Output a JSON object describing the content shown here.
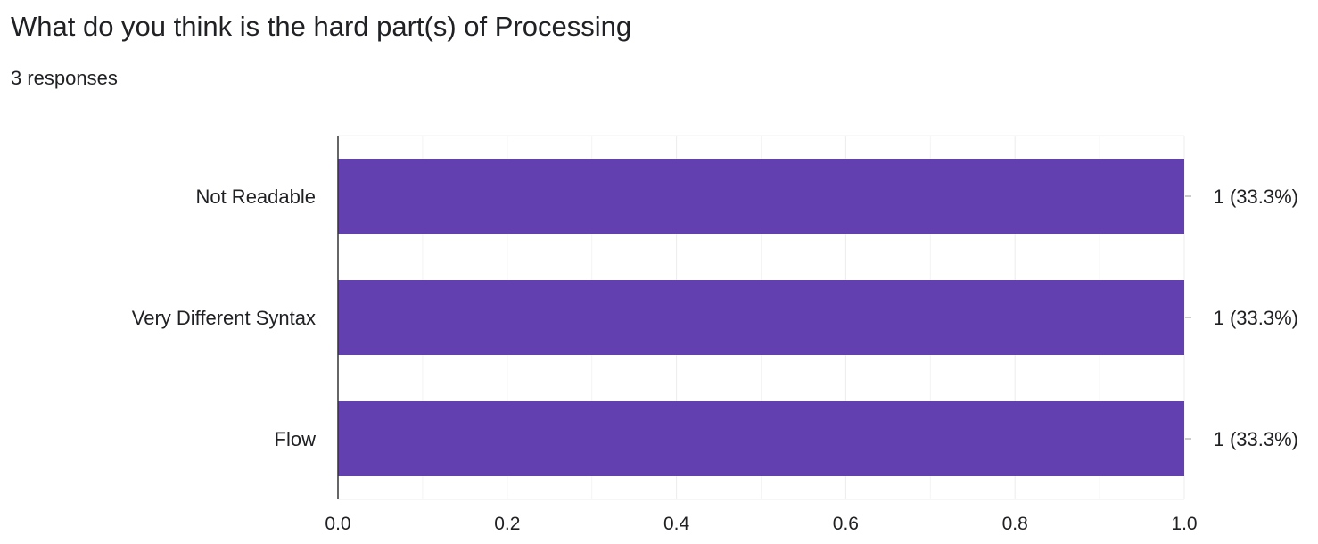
{
  "header": {
    "title": "What do you think is the hard part(s) of Processing",
    "responses": "3 responses"
  },
  "colors": {
    "bar": "#6240b0",
    "grid": "#ececec",
    "axis": "#333333",
    "text": "#202124"
  },
  "chart_data": {
    "type": "bar",
    "orientation": "horizontal",
    "title": "What do you think is the hard part(s) of Processing",
    "subtitle": "3 responses",
    "categories": [
      "Not Readable",
      "Very Different Syntax",
      "Flow"
    ],
    "values": [
      1,
      1,
      1
    ],
    "data_labels": [
      "1 (33.3%)",
      "1 (33.3%)",
      "1 (33.3%)"
    ],
    "xlim": [
      0,
      1
    ],
    "xticks": [
      0,
      0.2,
      0.4,
      0.6,
      0.8,
      1
    ],
    "xtick_labels": [
      "0.0",
      "0.2",
      "0.4",
      "0.6",
      "0.8",
      "1.0"
    ],
    "xlabel": "",
    "ylabel": "",
    "grid": true,
    "legend": "none"
  }
}
